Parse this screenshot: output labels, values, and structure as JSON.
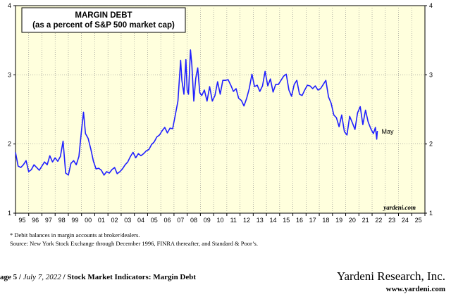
{
  "chart_data": {
    "type": "line",
    "title": "MARGIN DEBT",
    "subtitle": "(as a percent of S&P 500 market cap)",
    "ylim": [
      1,
      4
    ],
    "y_ticks": [
      1,
      2,
      3,
      4
    ],
    "xlim": [
      1995,
      2026
    ],
    "x_tick_labels": [
      "95",
      "96",
      "97",
      "98",
      "99",
      "00",
      "01",
      "02",
      "03",
      "04",
      "05",
      "06",
      "07",
      "08",
      "09",
      "10",
      "11",
      "12",
      "13",
      "14",
      "15",
      "16",
      "17",
      "18",
      "19",
      "20",
      "21",
      "22",
      "23",
      "24",
      "25"
    ],
    "grid": "vertical and horizontal dotted",
    "series": [
      {
        "color": "#1f1fff",
        "end_label": "May",
        "points": [
          [
            1995.0,
            1.88
          ],
          [
            1995.2,
            1.68
          ],
          [
            1995.4,
            1.66
          ],
          [
            1995.6,
            1.7
          ],
          [
            1995.8,
            1.76
          ],
          [
            1996.0,
            1.6
          ],
          [
            1996.2,
            1.63
          ],
          [
            1996.4,
            1.7
          ],
          [
            1996.6,
            1.66
          ],
          [
            1996.8,
            1.62
          ],
          [
            1997.0,
            1.68
          ],
          [
            1997.2,
            1.74
          ],
          [
            1997.4,
            1.7
          ],
          [
            1997.6,
            1.83
          ],
          [
            1997.8,
            1.74
          ],
          [
            1998.0,
            1.8
          ],
          [
            1998.2,
            1.75
          ],
          [
            1998.4,
            1.82
          ],
          [
            1998.6,
            2.04
          ],
          [
            1998.8,
            1.58
          ],
          [
            1999.0,
            1.55
          ],
          [
            1999.2,
            1.72
          ],
          [
            1999.4,
            1.76
          ],
          [
            1999.6,
            1.7
          ],
          [
            1999.8,
            1.82
          ],
          [
            2000.0,
            2.2
          ],
          [
            2000.15,
            2.46
          ],
          [
            2000.3,
            2.15
          ],
          [
            2000.5,
            2.08
          ],
          [
            2000.7,
            1.93
          ],
          [
            2000.9,
            1.75
          ],
          [
            2001.1,
            1.64
          ],
          [
            2001.3,
            1.65
          ],
          [
            2001.5,
            1.62
          ],
          [
            2001.7,
            1.55
          ],
          [
            2001.9,
            1.6
          ],
          [
            2002.1,
            1.58
          ],
          [
            2002.3,
            1.63
          ],
          [
            2002.5,
            1.66
          ],
          [
            2002.7,
            1.57
          ],
          [
            2002.9,
            1.6
          ],
          [
            2003.1,
            1.64
          ],
          [
            2003.3,
            1.7
          ],
          [
            2003.5,
            1.74
          ],
          [
            2003.7,
            1.82
          ],
          [
            2003.9,
            1.88
          ],
          [
            2004.1,
            1.8
          ],
          [
            2004.3,
            1.86
          ],
          [
            2004.5,
            1.83
          ],
          [
            2004.7,
            1.86
          ],
          [
            2004.9,
            1.9
          ],
          [
            2005.1,
            1.92
          ],
          [
            2005.3,
            1.99
          ],
          [
            2005.5,
            2.03
          ],
          [
            2005.7,
            2.1
          ],
          [
            2005.9,
            2.13
          ],
          [
            2006.1,
            2.19
          ],
          [
            2006.3,
            2.24
          ],
          [
            2006.5,
            2.16
          ],
          [
            2006.7,
            2.23
          ],
          [
            2006.9,
            2.22
          ],
          [
            2007.1,
            2.42
          ],
          [
            2007.3,
            2.62
          ],
          [
            2007.5,
            3.21
          ],
          [
            2007.6,
            2.92
          ],
          [
            2007.75,
            2.72
          ],
          [
            2007.9,
            3.22
          ],
          [
            2008.0,
            2.78
          ],
          [
            2008.1,
            2.72
          ],
          [
            2008.25,
            3.36
          ],
          [
            2008.35,
            3.15
          ],
          [
            2008.5,
            2.62
          ],
          [
            2008.65,
            2.95
          ],
          [
            2008.8,
            3.1
          ],
          [
            2008.95,
            2.74
          ],
          [
            2009.1,
            2.7
          ],
          [
            2009.3,
            2.78
          ],
          [
            2009.5,
            2.62
          ],
          [
            2009.7,
            2.83
          ],
          [
            2009.9,
            2.62
          ],
          [
            2010.1,
            2.7
          ],
          [
            2010.3,
            2.9
          ],
          [
            2010.5,
            2.72
          ],
          [
            2010.7,
            2.92
          ],
          [
            2010.9,
            2.92
          ],
          [
            2011.1,
            2.93
          ],
          [
            2011.3,
            2.85
          ],
          [
            2011.5,
            2.76
          ],
          [
            2011.7,
            2.8
          ],
          [
            2011.9,
            2.66
          ],
          [
            2012.1,
            2.63
          ],
          [
            2012.3,
            2.55
          ],
          [
            2012.5,
            2.66
          ],
          [
            2012.7,
            2.8
          ],
          [
            2012.9,
            3.01
          ],
          [
            2013.1,
            2.83
          ],
          [
            2013.3,
            2.85
          ],
          [
            2013.5,
            2.76
          ],
          [
            2013.7,
            2.84
          ],
          [
            2013.9,
            3.05
          ],
          [
            2014.1,
            2.84
          ],
          [
            2014.3,
            2.94
          ],
          [
            2014.5,
            2.75
          ],
          [
            2014.7,
            2.86
          ],
          [
            2014.9,
            2.86
          ],
          [
            2015.1,
            2.92
          ],
          [
            2015.3,
            2.98
          ],
          [
            2015.5,
            3.01
          ],
          [
            2015.7,
            2.78
          ],
          [
            2015.9,
            2.69
          ],
          [
            2016.1,
            2.86
          ],
          [
            2016.3,
            2.92
          ],
          [
            2016.5,
            2.72
          ],
          [
            2016.7,
            2.7
          ],
          [
            2016.9,
            2.78
          ],
          [
            2017.1,
            2.85
          ],
          [
            2017.3,
            2.84
          ],
          [
            2017.5,
            2.8
          ],
          [
            2017.7,
            2.84
          ],
          [
            2017.9,
            2.78
          ],
          [
            2018.1,
            2.8
          ],
          [
            2018.3,
            2.86
          ],
          [
            2018.5,
            2.92
          ],
          [
            2018.7,
            2.68
          ],
          [
            2018.9,
            2.59
          ],
          [
            2019.1,
            2.42
          ],
          [
            2019.3,
            2.38
          ],
          [
            2019.5,
            2.25
          ],
          [
            2019.7,
            2.42
          ],
          [
            2019.9,
            2.18
          ],
          [
            2020.1,
            2.13
          ],
          [
            2020.3,
            2.4
          ],
          [
            2020.5,
            2.31
          ],
          [
            2020.7,
            2.21
          ],
          [
            2020.9,
            2.45
          ],
          [
            2021.1,
            2.54
          ],
          [
            2021.3,
            2.28
          ],
          [
            2021.5,
            2.49
          ],
          [
            2021.7,
            2.32
          ],
          [
            2021.9,
            2.22
          ],
          [
            2022.1,
            2.15
          ],
          [
            2022.25,
            2.24
          ],
          [
            2022.35,
            2.07
          ],
          [
            2022.4,
            2.19
          ]
        ]
      }
    ],
    "watermark": "yardeni.com"
  },
  "notes": {
    "footnote_1": "*   Debit balances in margin accounts at broker/dealers.",
    "footnote_2": "Source: New York Stock Exchange through December 1996, FINRA thereafter, and Standard & Poor’s."
  },
  "footer": {
    "page": "age 5",
    "date": "July 7, 2022",
    "section": "Stock Market Indicators: Margin Debt",
    "brand": "Yardeni Research, Inc.",
    "url": "www.yardeni.com"
  },
  "colors": {
    "plot_background": "#ffffdd",
    "line": "#1f1fff"
  }
}
